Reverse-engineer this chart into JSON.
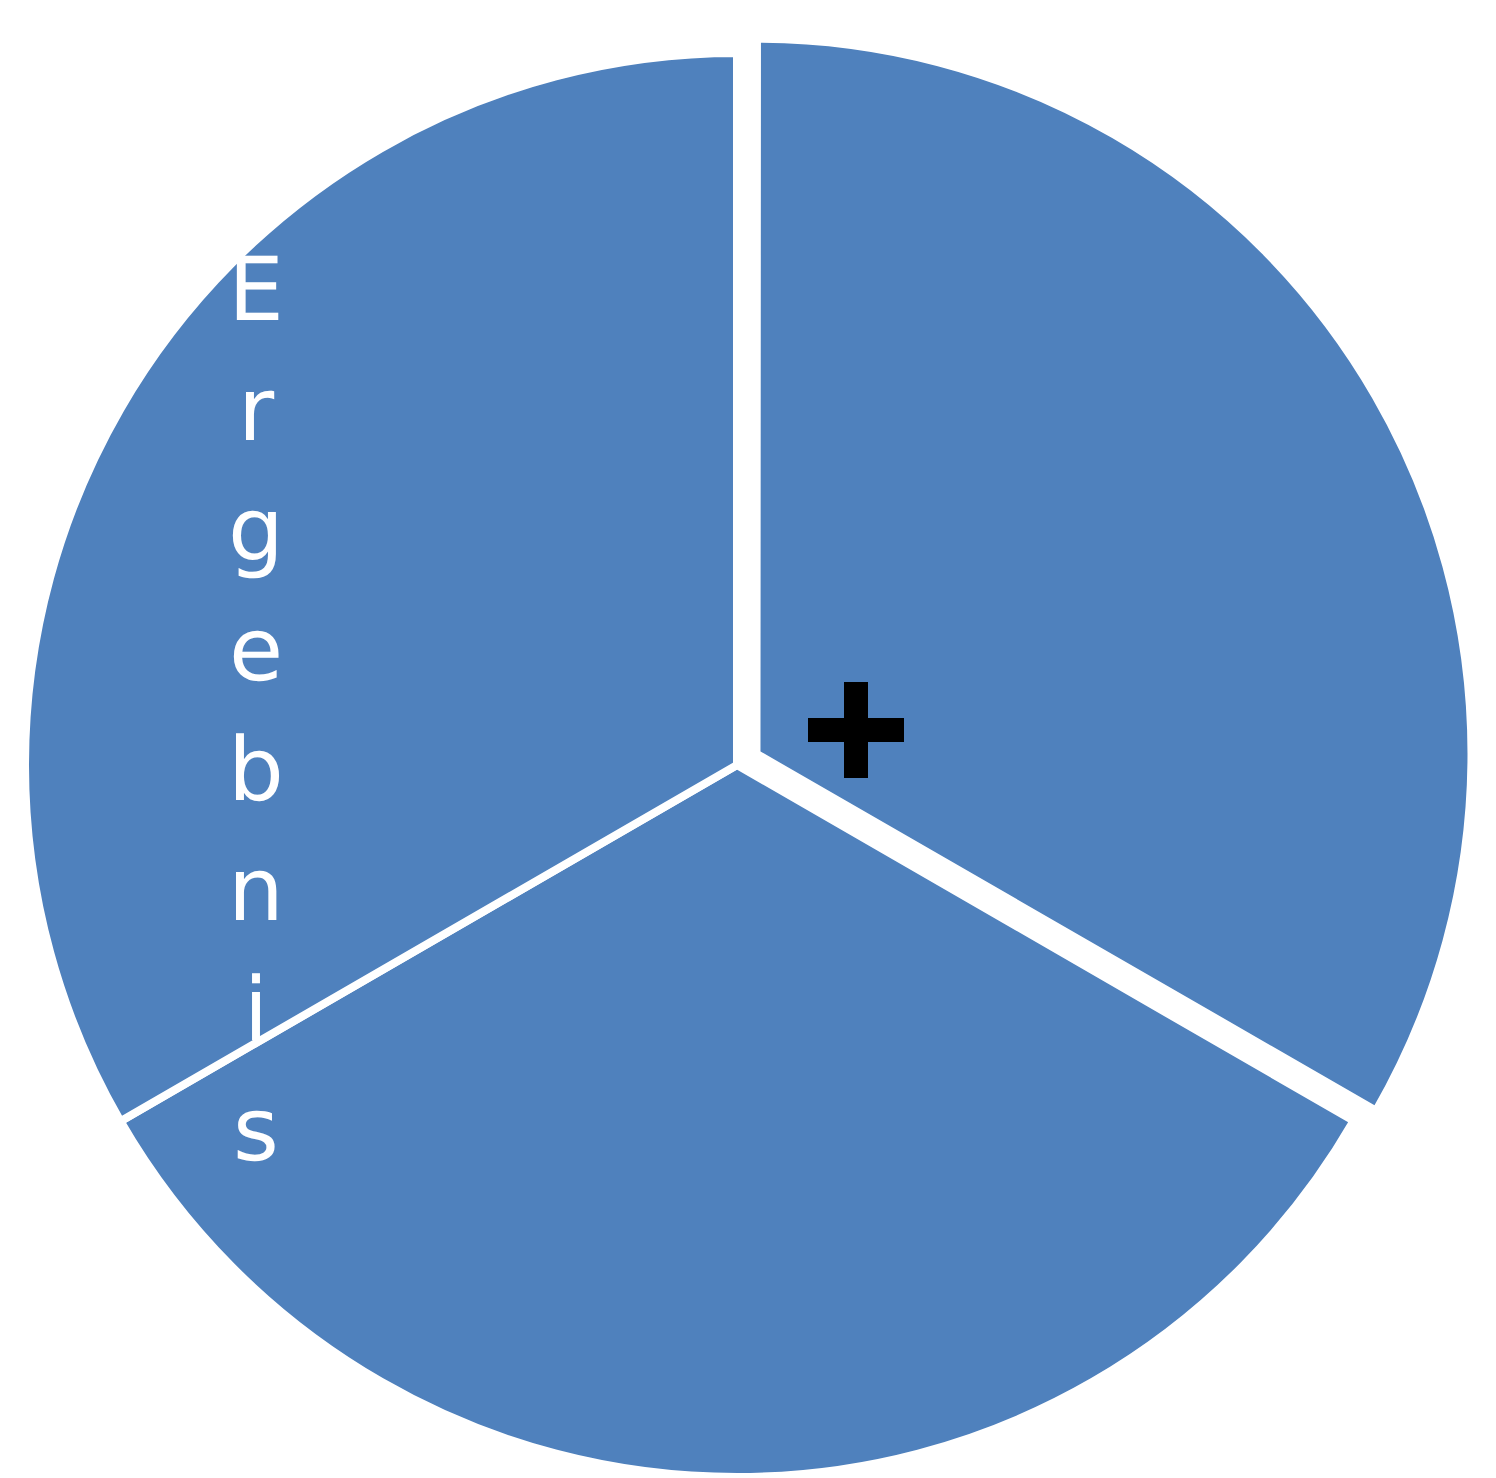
{
  "chart_data": {
    "type": "pie",
    "categories": [
      null,
      null,
      null
    ],
    "values": [
      33.33,
      33.33,
      33.34
    ],
    "colors": [
      "#4f81bd",
      "#4f81bd",
      "#4f81bd"
    ],
    "legend": false,
    "annotations": [
      "Ergebnis"
    ]
  }
}
